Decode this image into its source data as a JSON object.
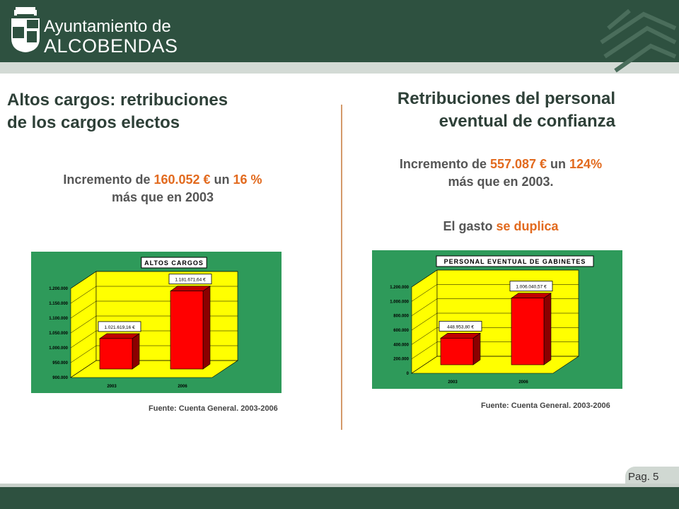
{
  "header": {
    "logo_line1": "Ayuntamiento de",
    "logo_line2": "ALCOBENDAS"
  },
  "left": {
    "title_line1": "Altos cargos: retribuciones",
    "title_line2": "de los cargos electos",
    "sub_pre": "Incremento de ",
    "sub_amount": "160.052 €",
    "sub_mid": " un ",
    "sub_pct": "16 %",
    "sub_line2": "más que en 2003",
    "source": "Fuente: Cuenta General. 2003-2006"
  },
  "right": {
    "title_line1": "Retribuciones del personal",
    "title_line2": "eventual de confianza",
    "sub_pre": "Incremento de ",
    "sub_amount": "557.087 €",
    "sub_mid": " un ",
    "sub_pct": "124%",
    "sub_line2": "más que en 2003.",
    "gasto_pre": "El gasto ",
    "gasto_hl": "se duplica",
    "source": "Fuente: Cuenta General. 2003-2006"
  },
  "chart_data": [
    {
      "type": "bar",
      "title": "ALTOS CARGOS",
      "categories": [
        "2003",
        "2006"
      ],
      "values": [
        1021619.16,
        1181671.64
      ],
      "data_labels": [
        "1.021.619,16 €",
        "1.181.671,64 €"
      ],
      "ylim": [
        900000,
        1200000
      ],
      "yticks": [
        900000,
        950000,
        1000000,
        1050000,
        1100000,
        1150000,
        1200000
      ],
      "ytick_labels": [
        "900.000",
        "950.000",
        "1.000.000",
        "1.050.000",
        "1.100.000",
        "1.150.000",
        "1.200.000"
      ],
      "bar_color": "#ff0000",
      "plot_bg": "#ffff00",
      "frame_bg": "#2e9a5a"
    },
    {
      "type": "bar",
      "title": "PERSONAL EVENTUAL DE GABINETES",
      "categories": [
        "2003",
        "2006"
      ],
      "values": [
        448953.8,
        1006040.57
      ],
      "data_labels": [
        "448.953,80 €",
        "1.006.040,57 €"
      ],
      "ylim": [
        0,
        1200000
      ],
      "yticks": [
        0,
        200000,
        400000,
        600000,
        800000,
        1000000,
        1200000
      ],
      "ytick_labels": [
        "0",
        "200.000",
        "400.000",
        "600.000",
        "800.000",
        "1.000.000",
        "1.200.000"
      ],
      "bar_color": "#ff0000",
      "plot_bg": "#ffff00",
      "frame_bg": "#2e9a5a"
    }
  ],
  "footer": {
    "page": "Pag. 5"
  }
}
